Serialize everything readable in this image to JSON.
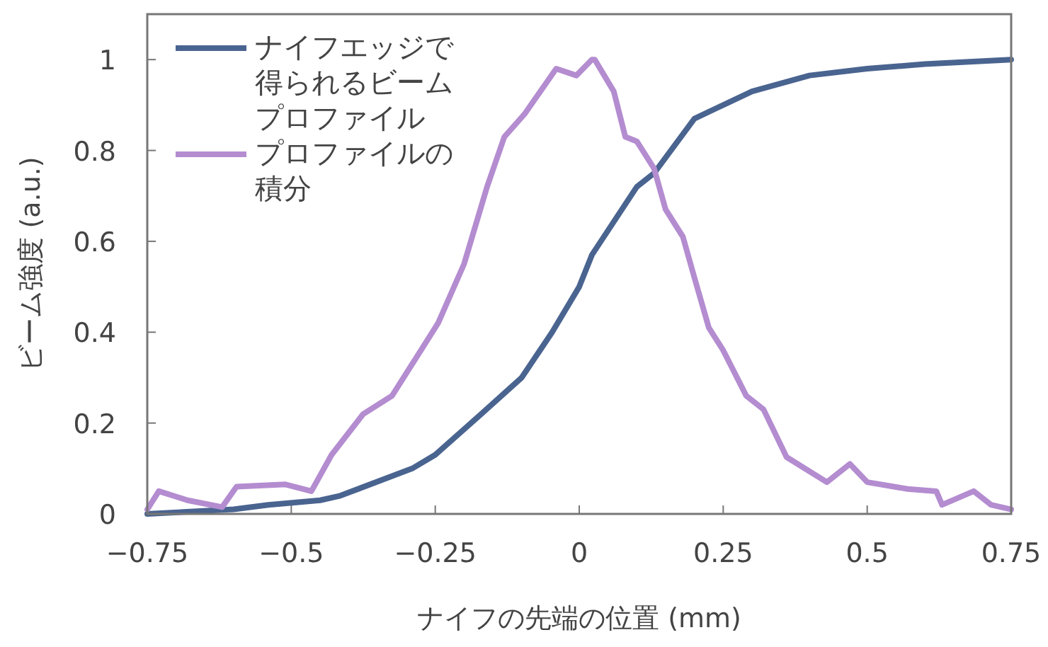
{
  "chart_data": {
    "type": "line",
    "xlabel": "ナイフの先端の位置 (mm)",
    "ylabel": "ビーム強度 (a.u.)",
    "xlim": [
      -0.75,
      0.75
    ],
    "ylim": [
      0,
      1.1
    ],
    "xticks": [
      -0.75,
      -0.5,
      -0.25,
      0,
      0.25,
      0.5,
      0.75
    ],
    "yticks": [
      0,
      0.2,
      0.4,
      0.6,
      0.8,
      1
    ],
    "grid": false,
    "legend": "top left",
    "marker": "none",
    "line_style": "solid",
    "series": [
      {
        "name": "ナイフエッジで得られるビームプロファイル",
        "color": "#4a6490",
        "x": [
          -0.75,
          -0.6,
          -0.54,
          -0.45,
          -0.415,
          -0.29,
          -0.25,
          -0.17,
          -0.1,
          -0.047,
          0,
          0.022,
          0.1,
          0.13,
          0.2,
          0.25,
          0.3,
          0.4,
          0.5,
          0.6,
          0.75
        ],
        "values": [
          0,
          0.01,
          0.02,
          0.03,
          0.04,
          0.1,
          0.13,
          0.22,
          0.3,
          0.4,
          0.5,
          0.57,
          0.72,
          0.75,
          0.87,
          0.9,
          0.93,
          0.965,
          0.98,
          0.99,
          1.0
        ]
      },
      {
        "name": "プロファイルの積分",
        "color": "#b48cd0",
        "x": [
          -0.75,
          -0.73,
          -0.68,
          -0.62,
          -0.595,
          -0.51,
          -0.465,
          -0.43,
          -0.375,
          -0.325,
          -0.285,
          -0.245,
          -0.2,
          -0.16,
          -0.13,
          -0.095,
          -0.04,
          -0.005,
          0.022,
          0.027,
          0.06,
          0.08,
          0.1,
          0.13,
          0.15,
          0.18,
          0.2,
          0.225,
          0.25,
          0.29,
          0.32,
          0.36,
          0.43,
          0.47,
          0.5,
          0.57,
          0.62,
          0.63,
          0.685,
          0.715,
          0.75
        ],
        "values": [
          0.01,
          0.05,
          0.03,
          0.015,
          0.06,
          0.065,
          0.05,
          0.13,
          0.22,
          0.26,
          0.34,
          0.42,
          0.55,
          0.72,
          0.83,
          0.88,
          0.98,
          0.965,
          1.0,
          1.0,
          0.93,
          0.83,
          0.82,
          0.76,
          0.67,
          0.61,
          0.52,
          0.41,
          0.36,
          0.26,
          0.23,
          0.125,
          0.07,
          0.11,
          0.07,
          0.055,
          0.05,
          0.02,
          0.05,
          0.02,
          0.01
        ]
      }
    ]
  }
}
